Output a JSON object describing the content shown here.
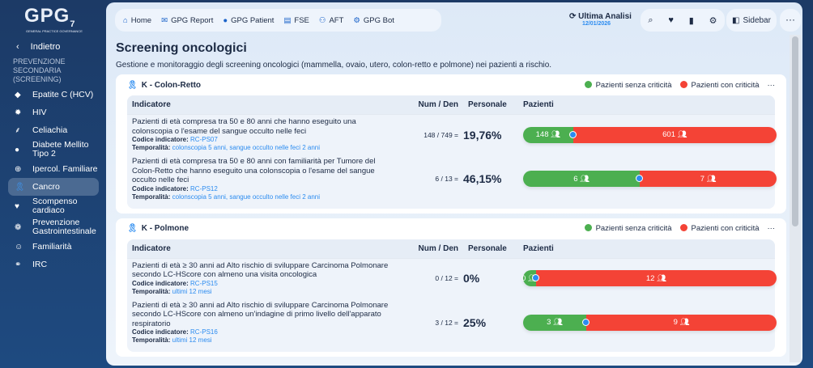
{
  "logo": {
    "text": "GPG",
    "sup": "7",
    "tagline": "GENERAL PRACTICE GOVERNANCE"
  },
  "sidebar": {
    "back": "Indietro",
    "section": "PREVENZIONE SECONDARIA (SCREENING)",
    "items": [
      {
        "label": "Epatite C (HCV)",
        "icon": "liver-icon",
        "glyph": "◆"
      },
      {
        "label": "HIV",
        "icon": "virus-icon",
        "glyph": "✹"
      },
      {
        "label": "Celiachia",
        "icon": "wheat-icon",
        "glyph": "⸙"
      },
      {
        "label": "Diabete Mellito Tipo 2",
        "icon": "drop-icon",
        "glyph": "●"
      },
      {
        "label": "Ipercol. Familiare",
        "icon": "zoom-plus-icon",
        "glyph": "⊕"
      },
      {
        "label": "Cancro",
        "icon": "ribbon-icon",
        "glyph": "🎗"
      },
      {
        "label": "Scompenso cardiaco",
        "icon": "heart-icon",
        "glyph": "♥"
      },
      {
        "label": "Prevenzione Gastrointestinale",
        "icon": "stomach-icon",
        "glyph": "❁"
      },
      {
        "label": "Familiarità",
        "icon": "person-icon",
        "glyph": "☺"
      },
      {
        "label": "IRC",
        "icon": "kidney-icon",
        "glyph": "⚭"
      }
    ]
  },
  "topnav": [
    {
      "label": "Home",
      "glyph": "⌂"
    },
    {
      "label": "GPG Report",
      "glyph": "✉"
    },
    {
      "label": "GPG Patient",
      "glyph": "●"
    },
    {
      "label": "FSE",
      "glyph": "▤"
    },
    {
      "label": "AFT",
      "glyph": "⚇"
    },
    {
      "label": "GPG Bot",
      "glyph": "⚙"
    }
  ],
  "analysis": {
    "label": "Ultima Analisi",
    "date": "12/01/2026"
  },
  "tools": {
    "sidebar": "Sidebar",
    "more": "···"
  },
  "page": {
    "title": "Screening oncologici",
    "subtitle": "Gestione e monitoraggio degli screening oncologici (mammella, ovaio, utero, colon-retto e polmone) nei pazienti a rischio."
  },
  "legend": {
    "ok": "Pazienti senza criticità",
    "bad": "Pazienti con criticità",
    "ok_color": "#4caf50",
    "bad_color": "#f44336"
  },
  "columns": {
    "ind": "Indicatore",
    "numden": "Num / Den",
    "pers": "Personale",
    "paz": "Pazienti"
  },
  "labels": {
    "code": "Codice indicatore:",
    "time": "Temporalità:"
  },
  "cards": [
    {
      "title": "K - Colon-Retto",
      "rows": [
        {
          "desc": "Pazienti di età compresa tra 50 e 80 anni che hanno eseguito una colonscopia o l'esame del sangue occulto nelle feci",
          "code": "RC-PS07",
          "time": "colonscopia 5 anni, sangue occulto nelle feci 2 anni",
          "numden": "148 / 749  =",
          "pct": "19,76%",
          "num": 148,
          "den": 749,
          "ok": "148",
          "bad": "601"
        },
        {
          "desc": "Pazienti di età compresa tra 50 e 80 anni con familiarità per Tumore del Colon-Retto che hanno eseguito una colonscopia o l'esame del sangue occulto nelle feci",
          "code": "RC-PS12",
          "time": "colonscopia 5 anni, sangue occulto nelle feci 2 anni",
          "numden": "6 / 13  =",
          "pct": "46,15%",
          "num": 6,
          "den": 13,
          "ok": "6",
          "bad": "7"
        }
      ]
    },
    {
      "title": "K - Polmone",
      "rows": [
        {
          "desc": "Pazienti di età ≥ 30 anni ad Alto rischio di sviluppare Carcinoma Polmonare secondo LC-HScore con almeno una visita oncologica",
          "code": "RC-PS15",
          "time": "ultimi 12 mesi",
          "numden": "0 / 12  =",
          "pct": "0%",
          "num": 0,
          "den": 12,
          "ok": "0",
          "bad": "12"
        },
        {
          "desc": "Pazienti di età ≥ 30 anni ad Alto rischio di sviluppare Carcinoma Polmonare secondo LC-HScore con almeno un'indagine di primo livello dell'apparato respiratorio",
          "code": "RC-PS16",
          "time": "ultimi 12 mesi",
          "numden": "3 / 12  =",
          "pct": "25%",
          "num": 3,
          "den": 12,
          "ok": "3",
          "bad": "9"
        }
      ]
    }
  ]
}
